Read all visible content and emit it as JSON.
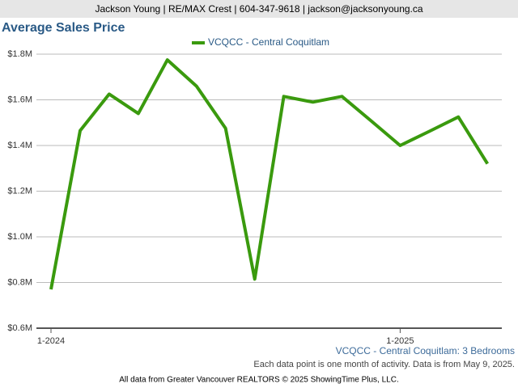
{
  "header": "Jackson Young | RE/MAX Crest | 604-347-9618 | jackson@jacksonyoung.ca",
  "chart_data": {
    "type": "line",
    "title": "Average Sales Price",
    "categories": [
      "1-2024",
      null,
      null,
      null,
      null,
      null,
      null,
      null,
      null,
      null,
      null,
      null,
      "1-2025",
      null,
      null,
      null
    ],
    "series": [
      {
        "name": "VCQCC - Central Coquitlam",
        "color": "#3a9a0e",
        "values": [
          770000,
          1465000,
          1625000,
          1540000,
          1775000,
          1660000,
          1475000,
          815000,
          1615000,
          1590000,
          1615000,
          1508000,
          1400000,
          1462000,
          1525000,
          1320000
        ]
      }
    ],
    "ylim": [
      600000,
      1800000
    ],
    "yticks": [
      {
        "value": 600000,
        "label": "$0.6M"
      },
      {
        "value": 800000,
        "label": "$0.8M"
      },
      {
        "value": 1000000,
        "label": "$1.0M"
      },
      {
        "value": 1200000,
        "label": "$1.2M"
      },
      {
        "value": 1400000,
        "label": "$1.4M"
      },
      {
        "value": 1600000,
        "label": "$1.6M"
      },
      {
        "value": 1800000,
        "label": "$1.8M"
      }
    ],
    "grid": true,
    "caption": "VCQCC - Central Coquitlam: 3 Bedrooms",
    "note": "Each data point is one month of activity. Data is from May 9, 2025."
  },
  "footer": "All data from Greater Vancouver REALTORS © 2025 ShowingTime Plus, LLC."
}
